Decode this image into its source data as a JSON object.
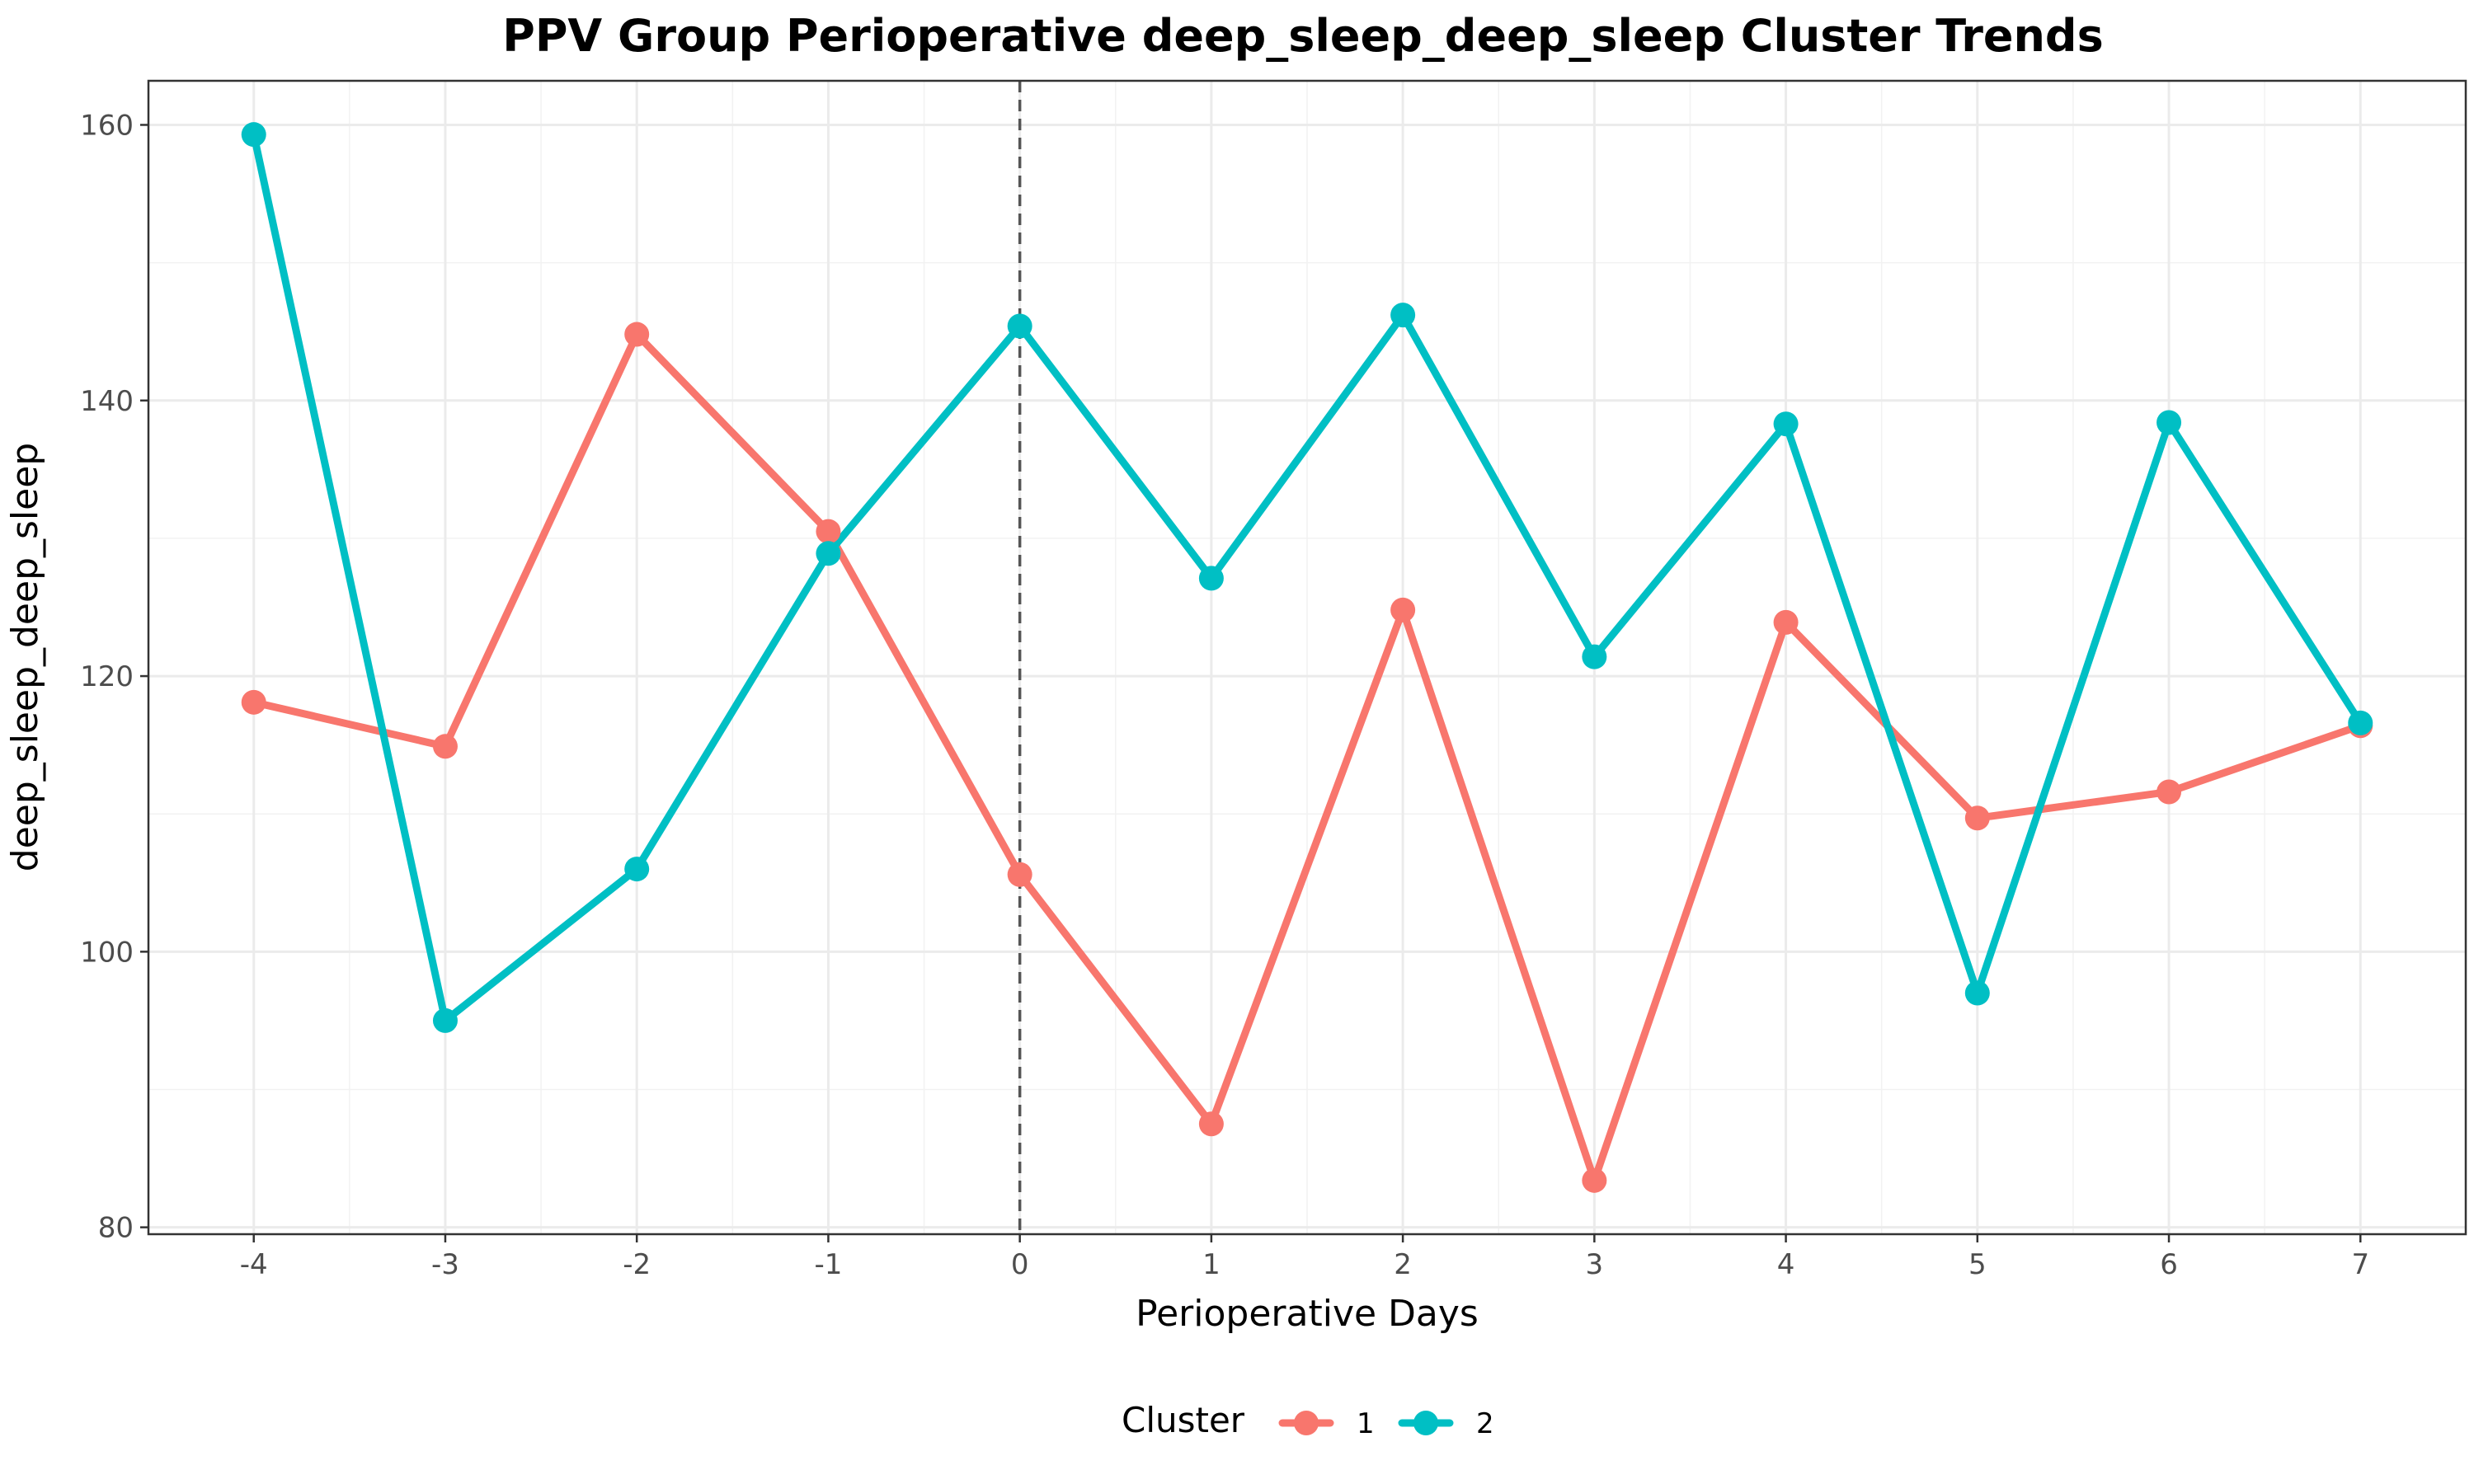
{
  "chart_data": {
    "type": "line",
    "title": "PPV Group Perioperative deep_sleep_deep_sleep Cluster Trends",
    "xlabel": "Perioperative Days",
    "ylabel": "deep_sleep_deep_sleep",
    "x": [
      -4,
      -3,
      -2,
      -1,
      0,
      1,
      2,
      3,
      4,
      5,
      6,
      7
    ],
    "xlim": [
      -4.55,
      7.55
    ],
    "ylim": [
      79.5,
      163.2
    ],
    "x_ticks": [
      -4,
      -3,
      -2,
      -1,
      0,
      1,
      2,
      3,
      4,
      5,
      6,
      7
    ],
    "y_ticks": [
      80,
      100,
      120,
      140,
      160
    ],
    "reference_line": {
      "x": 0,
      "style": "dashed"
    },
    "grid": true,
    "legend": {
      "title": "Cluster",
      "position": "bottom"
    },
    "series": [
      {
        "name": "1",
        "color": "#F8766D",
        "values": [
          118.1,
          114.9,
          144.8,
          130.5,
          105.6,
          87.5,
          124.8,
          83.4,
          123.9,
          109.7,
          111.6,
          116.4
        ]
      },
      {
        "name": "2",
        "color": "#00BFC4",
        "values": [
          159.3,
          95.0,
          106.0,
          128.9,
          145.4,
          127.1,
          146.2,
          121.4,
          138.3,
          97.0,
          138.4,
          116.6
        ]
      }
    ]
  }
}
